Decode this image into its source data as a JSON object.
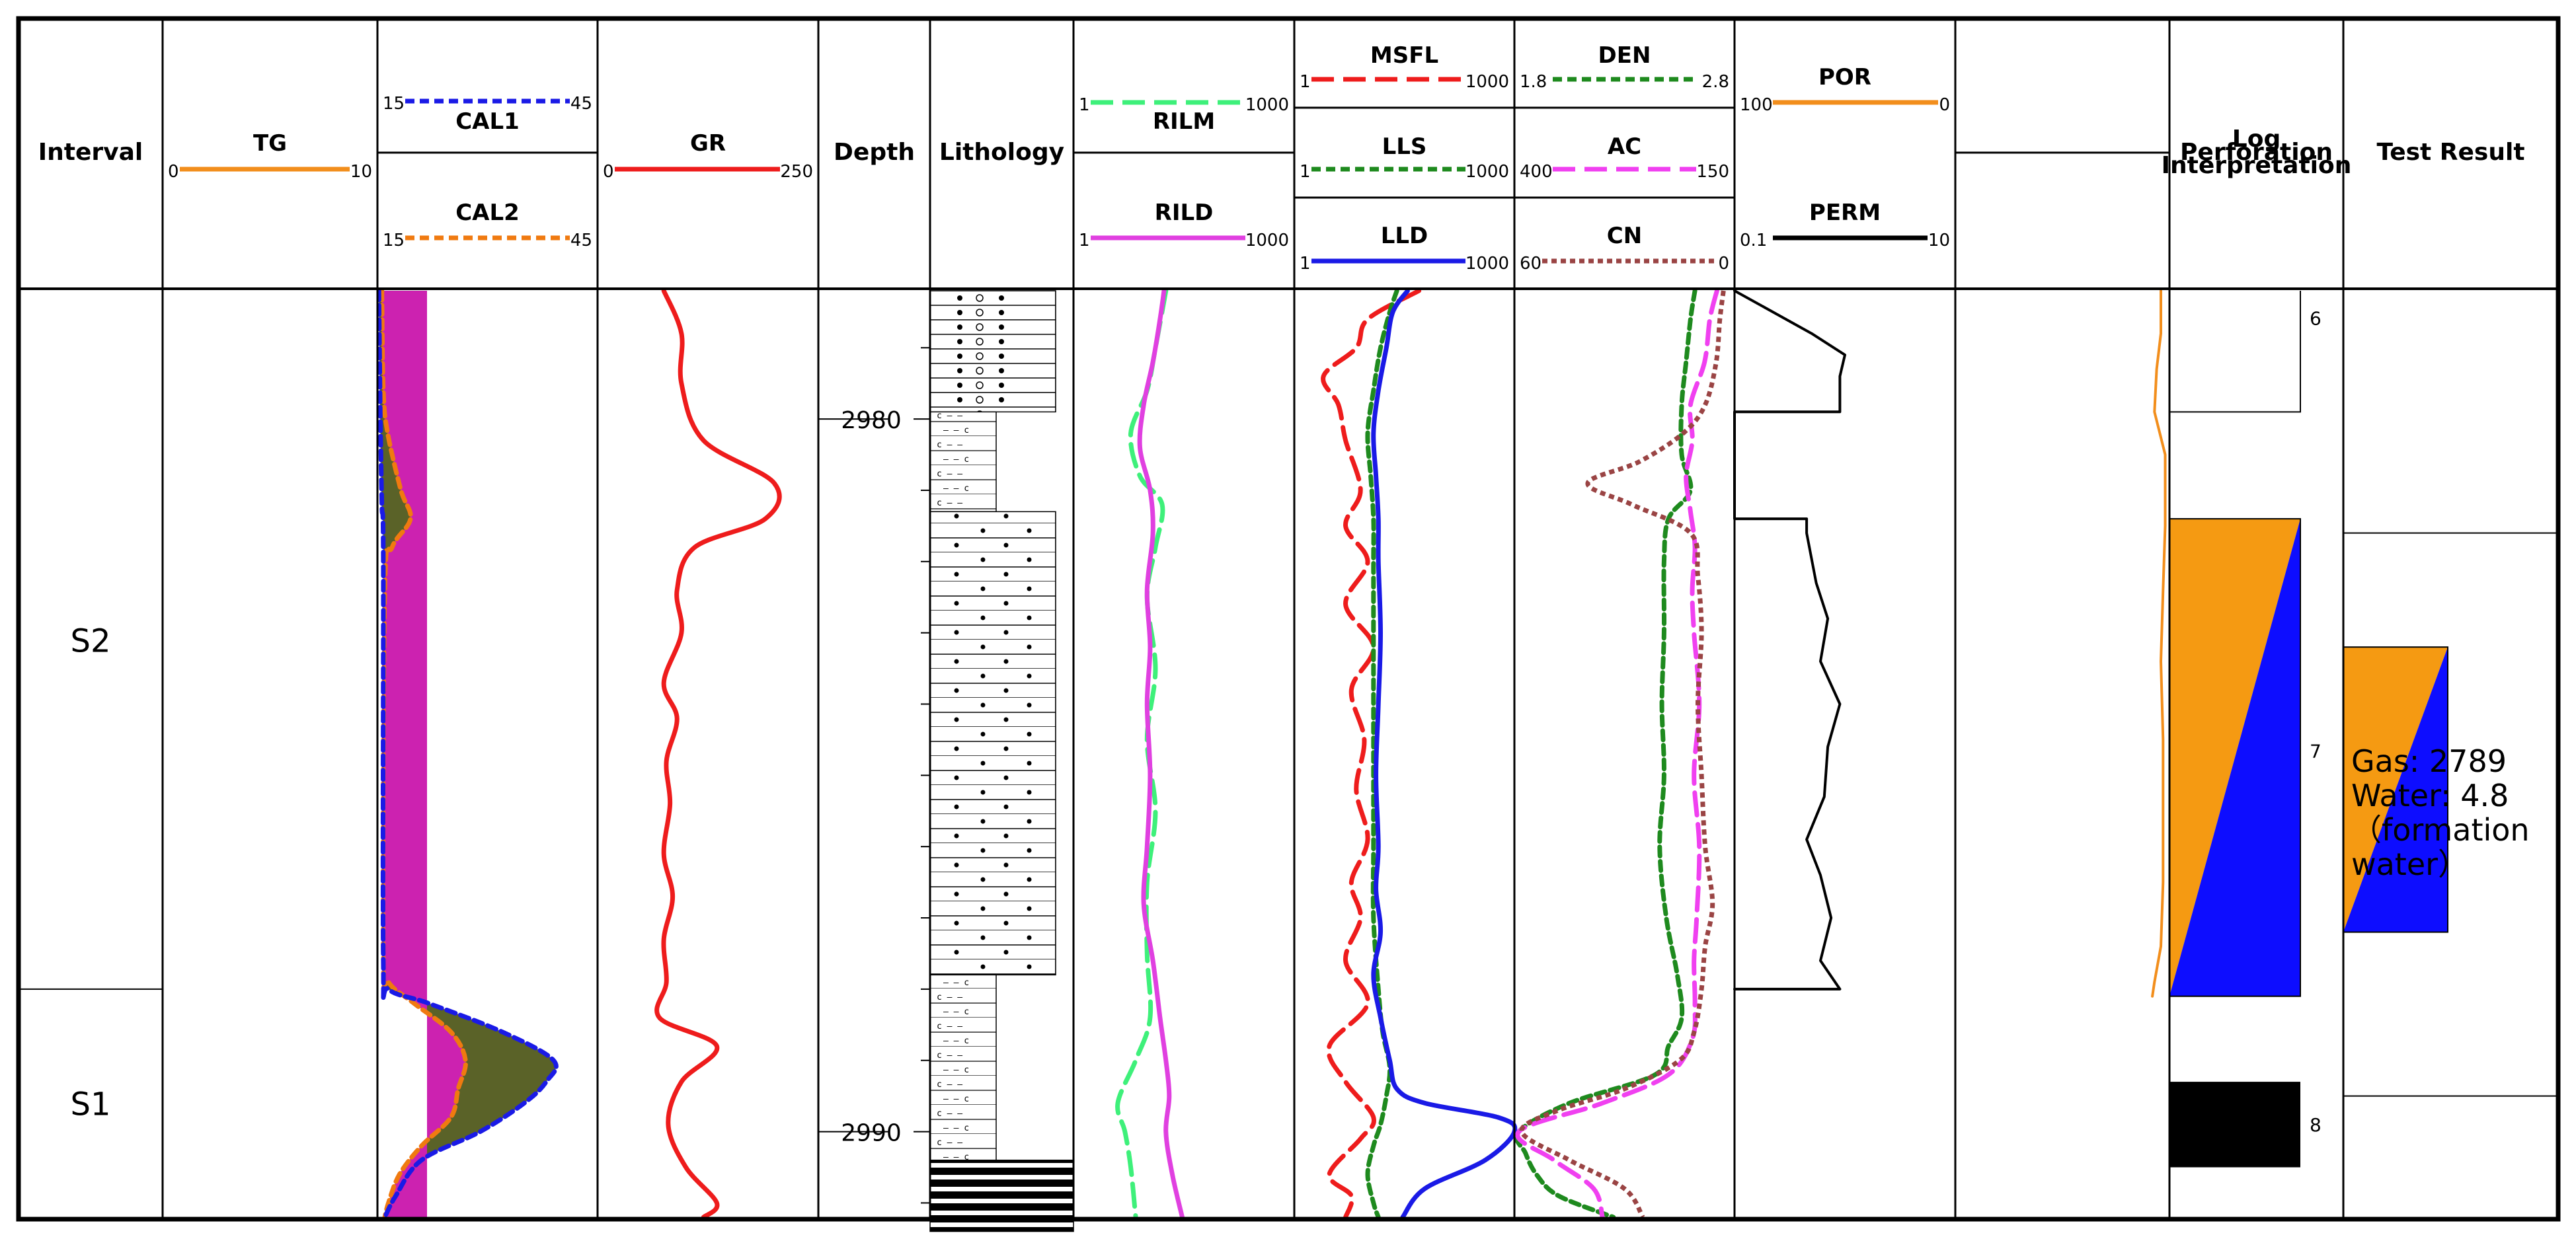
{
  "chart_data": {
    "type": "well-log",
    "headers": {
      "interval": "Interval",
      "depth": "Depth",
      "lithology": "Lithology",
      "log_interpretation": "Log Interpretation",
      "perforation": "Perforation",
      "test_result": "Test Result"
    },
    "depth_range": [
      2978.2,
      2991.2
    ],
    "depth_ticks": [
      2980,
      2990
    ],
    "tracks": {
      "tg": {
        "name": "TG",
        "scale": [
          "0",
          "10"
        ],
        "color": "#f28e1c",
        "style": "solid"
      },
      "cal1": {
        "name": "CAL1",
        "scale": [
          "15",
          "45"
        ],
        "color": "#1a1ae6",
        "style": "dash"
      },
      "cal2": {
        "name": "CAL2",
        "scale": [
          "15",
          "45"
        ],
        "color": "#f07a10",
        "style": "dash"
      },
      "gr": {
        "name": "GR",
        "scale": [
          "0",
          "250"
        ],
        "color": "#ee1c1c",
        "style": "solid"
      },
      "rilm": {
        "name": "RILM",
        "scale": [
          "1",
          "1000"
        ],
        "color": "#3ef07a",
        "style": "longdash"
      },
      "rild": {
        "name": "RILD",
        "scale": [
          "1",
          "1000"
        ],
        "color": "#e040e0",
        "style": "solid"
      },
      "msfl": {
        "name": "MSFL",
        "scale": [
          "1",
          "1000"
        ],
        "color": "#ee1c1c",
        "style": "longdash"
      },
      "lls": {
        "name": "LLS",
        "scale": [
          "1",
          "1000"
        ],
        "color": "#1e8a1e",
        "style": "dash"
      },
      "lld": {
        "name": "LLD",
        "scale": [
          "1",
          "1000"
        ],
        "color": "#1a1ae6",
        "style": "solid"
      },
      "den": {
        "name": "DEN",
        "scale": [
          "1.8",
          "2.8"
        ],
        "color": "#1e8a1e",
        "style": "dash"
      },
      "ac": {
        "name": "AC",
        "scale": [
          "400",
          "150"
        ],
        "color": "#f040f0",
        "style": "longdash"
      },
      "cn": {
        "name": "CN",
        "scale": [
          "60",
          "0"
        ],
        "color": "#9a4444",
        "style": "dot"
      },
      "por": {
        "name": "POR",
        "scale": [
          "100",
          "0"
        ],
        "color": "#f28e1c",
        "style": "solid"
      },
      "perm": {
        "name": "PERM",
        "scale": [
          "0.1",
          "10"
        ],
        "color": "#000000",
        "style": "solid"
      }
    },
    "intervals": [
      {
        "name": "S2",
        "from": 2978.2,
        "to": 2988.0
      },
      {
        "name": "S1",
        "from": 2988.0,
        "to": 2991.2
      }
    ],
    "lithology": [
      {
        "type": "pebbly-sandstone",
        "from": 2978.2,
        "to": 2979.9
      },
      {
        "type": "calcareous-mudstone",
        "from": 2979.9,
        "to": 2981.3
      },
      {
        "type": "sandstone",
        "from": 2981.3,
        "to": 2987.8
      },
      {
        "type": "calcareous-mudstone",
        "from": 2987.8,
        "to": 2990.4
      },
      {
        "type": "coal-shale",
        "from": 2990.4,
        "to": 2991.4
      },
      {
        "type": "calcareous-mudstone",
        "from": 2991.4,
        "to": 2991.2
      }
    ],
    "log_interpretation": [
      {
        "label": "6",
        "from": 2978.2,
        "to": 2979.9,
        "type": "none"
      },
      {
        "label": "7",
        "from": 2981.4,
        "to": 2988.1,
        "type": "gas-water"
      },
      {
        "label": "8",
        "from": 2989.3,
        "to": 2990.5,
        "type": "coal"
      }
    ],
    "perforation": [
      {
        "from": 2983.2,
        "to": 2987.2,
        "type": "gas-water"
      }
    ],
    "test_result": {
      "line1": "Gas: 2789",
      "line2": "Water: 4.8",
      "line3": "（formation",
      "line4": " water）",
      "from": 2981.6,
      "to": 2989.5
    },
    "curves": {
      "gr": {
        "depth": [
          2978.2,
          2978.8,
          2979.5,
          2980.3,
          2980.9,
          2981.4,
          2981.8,
          2982.4,
          2983.0,
          2983.7,
          2984.2,
          2984.8,
          2985.4,
          2986.1,
          2986.7,
          2987.3,
          2987.9,
          2988.4,
          2988.8,
          2989.3,
          2989.9,
          2990.5,
          2991.0,
          2991.2
        ],
        "value": [
          75,
          95,
          95,
          120,
          200,
          190,
          110,
          90,
          95,
          75,
          90,
          78,
          82,
          75,
          85,
          75,
          78,
          70,
          135,
          95,
          80,
          100,
          135,
          120
        ]
      },
      "cal1": {
        "depth": [
          2978.2,
          2980.0,
          2981.2,
          2982.0,
          2987.6,
          2988.0,
          2988.2,
          2988.6,
          2989.0,
          2989.3,
          2989.6,
          2990.0,
          2990.4,
          2990.9,
          2991.2
        ],
        "value": [
          15.2,
          15.4,
          15.6,
          15.8,
          15.8,
          16.5,
          22,
          32,
          39,
          38,
          35,
          29,
          21,
          17.5,
          16
        ]
      },
      "cal2": {
        "depth": [
          2978.2,
          2979.6,
          2980.2,
          2981.0,
          2981.4,
          2981.8,
          2982.4,
          2987.5,
          2987.9,
          2988.2,
          2988.6,
          2989.0,
          2989.4,
          2989.8,
          2990.2,
          2990.6,
          2991.0,
          2991.2
        ],
        "value": [
          15.6,
          15.8,
          16.4,
          18.2,
          19.5,
          17,
          16,
          15.8,
          16.5,
          20,
          25,
          27,
          26,
          25,
          21,
          18,
          16.5,
          16
        ]
      },
      "tg": {
        "depth": [
          2978.2,
          2991.2
        ],
        "value": [
          0,
          0
        ]
      },
      "rilm": {
        "depth": [
          2978.2,
          2979.0,
          2979.6,
          2980.2,
          2980.8,
          2981.2,
          2981.8,
          2982.5,
          2983.5,
          2984.5,
          2985.5,
          2986.5,
          2987.5,
          2988.4,
          2989.0,
          2989.6,
          2990.0,
          2990.5,
          2991.2
        ],
        "value": [
          18,
          13,
          10,
          6,
          8,
          16,
          13,
          10,
          13,
          10,
          13,
          10,
          10,
          11,
          7,
          4,
          5,
          6,
          7
        ]
      },
      "rild": {
        "depth": [
          2978.2,
          2978.6,
          2979.2,
          2979.8,
          2980.4,
          2981.0,
          2981.6,
          2982.4,
          2983.2,
          2984.0,
          2985.0,
          2986.0,
          2986.8,
          2987.6,
          2988.4,
          2989.0,
          2989.5,
          2990.0,
          2990.6,
          2991.2
        ],
        "value": [
          17,
          15,
          12,
          9,
          8,
          11,
          12,
          10,
          11,
          10,
          11,
          10,
          9,
          12,
          15,
          18,
          20,
          18,
          22,
          30
        ]
      },
      "msfl": {
        "depth": [
          2978.2,
          2978.6,
          2979.0,
          2979.4,
          2979.8,
          2980.3,
          2981.0,
          2981.5,
          2982.0,
          2982.6,
          2983.2,
          2983.8,
          2984.5,
          2985.2,
          2985.9,
          2986.5,
          2987.0,
          2987.6,
          2988.2,
          2988.8,
          2989.3,
          2989.8,
          2990.1,
          2990.6,
          2990.9,
          2991.2
        ],
        "value": [
          50,
          10,
          7,
          2.5,
          4,
          5,
          8,
          5,
          10,
          5,
          12,
          6,
          9,
          7,
          10,
          6,
          8,
          5,
          10,
          3,
          5,
          12,
          8,
          3,
          6,
          5
        ]
      },
      "lls": {
        "depth": [
          2978.2,
          2978.5,
          2979.0,
          2979.6,
          2980.2,
          2980.8,
          2981.4,
          2982.0,
          2983.0,
          2984.0,
          2985.0,
          2986.0,
          2987.0,
          2988.0,
          2988.6,
          2989.1,
          2989.5,
          2989.9,
          2990.2,
          2990.6,
          2991.0,
          2991.2
        ],
        "value": [
          25,
          20,
          15,
          12,
          10,
          11,
          12,
          12,
          12,
          12,
          12,
          12,
          12,
          14,
          16,
          20,
          18,
          15,
          12,
          10,
          12,
          14
        ]
      },
      "lld": {
        "depth": [
          2978.2,
          2978.5,
          2979.0,
          2979.6,
          2980.2,
          2980.8,
          2981.4,
          2982.0,
          2983.0,
          2984.0,
          2985.0,
          2986.0,
          2986.6,
          2987.2,
          2987.8,
          2988.4,
          2989.0,
          2989.4,
          2989.6,
          2989.8,
          2990.0,
          2990.4,
          2990.8,
          2991.2
        ],
        "value": [
          35,
          22,
          18,
          14,
          12,
          13,
          14,
          14,
          15,
          14,
          13,
          14,
          13,
          15,
          12,
          15,
          20,
          25,
          60,
          600,
          1000,
          400,
          60,
          30
        ]
      },
      "den": {
        "depth": [
          2978.2,
          2978.6,
          2979.2,
          2979.8,
          2980.5,
          2981.0,
          2981.4,
          2982.0,
          2983.0,
          2984.0,
          2985.0,
          2986.0,
          2987.0,
          2987.8,
          2988.4,
          2988.8,
          2989.2,
          2989.6,
          2990.0,
          2990.3,
          2990.6,
          2990.9,
          2991.2
        ],
        "value": [
          2.62,
          2.6,
          2.58,
          2.56,
          2.56,
          2.6,
          2.5,
          2.48,
          2.48,
          2.47,
          2.48,
          2.46,
          2.49,
          2.54,
          2.56,
          2.5,
          2.44,
          2.05,
          1.82,
          1.85,
          1.9,
          2.0,
          2.25
        ]
      },
      "ac": {
        "depth": [
          2978.2,
          2978.6,
          2979.2,
          2979.8,
          2980.3,
          2980.8,
          2981.3,
          2981.8,
          2982.4,
          2983.0,
          2984.0,
          2985.0,
          2986.0,
          2987.0,
          2987.6,
          2988.2,
          2988.7,
          2989.2,
          2989.6,
          2990.0,
          2990.4,
          2990.8,
          2991.2
        ],
        "value": [
          170,
          178,
          184,
          200,
          198,
          205,
          200,
          195,
          198,
          196,
          190,
          196,
          190,
          193,
          196,
          195,
          198,
          225,
          300,
          395,
          355,
          310,
          300
        ]
      },
      "cn": {
        "depth": [
          2978.2,
          2978.6,
          2979.2,
          2979.8,
          2980.2,
          2980.6,
          2980.9,
          2981.2,
          2981.6,
          2982.2,
          2983.0,
          2984.0,
          2985.0,
          2986.0,
          2986.8,
          2987.4,
          2988.0,
          2988.6,
          2989.0,
          2989.4,
          2989.7,
          2990.0,
          2990.4,
          2990.8,
          2991.2
        ],
        "value": [
          3,
          4,
          5,
          8,
          14,
          26,
          40,
          28,
          12,
          10,
          9,
          10,
          9,
          8,
          6,
          8,
          9,
          11,
          15,
          30,
          48,
          58,
          45,
          30,
          25
        ]
      },
      "por": {
        "depth": [
          2978.2,
          2978.8,
          2979.3,
          2979.9,
          2980.5,
          2981.5,
          2982.4,
          2983.4,
          2984.5,
          2985.5,
          2986.5,
          2987.4,
          2987.9,
          2988.1
        ],
        "value": [
          4,
          4,
          6,
          7,
          2,
          2,
          3,
          4,
          3,
          3,
          3,
          4,
          7,
          8
        ]
      },
      "perm": {
        "depth": [
          2978.2,
          2978.8,
          2979.1,
          2979.4,
          2979.9,
          2979.9,
          2981.4,
          2981.4,
          2981.6,
          2982.3,
          2982.8,
          2983.4,
          2984.0,
          2984.6,
          2985.3,
          2985.9,
          2986.4,
          2987.0,
          2987.6,
          2988.0,
          2988.0
        ],
        "value": [
          0.1,
          0.5,
          1.0,
          0.9,
          0.9,
          0.1,
          0.1,
          0.45,
          0.45,
          0.55,
          0.7,
          0.6,
          0.9,
          0.7,
          0.65,
          0.45,
          0.6,
          0.75,
          0.6,
          0.9,
          0.1
        ]
      }
    }
  }
}
